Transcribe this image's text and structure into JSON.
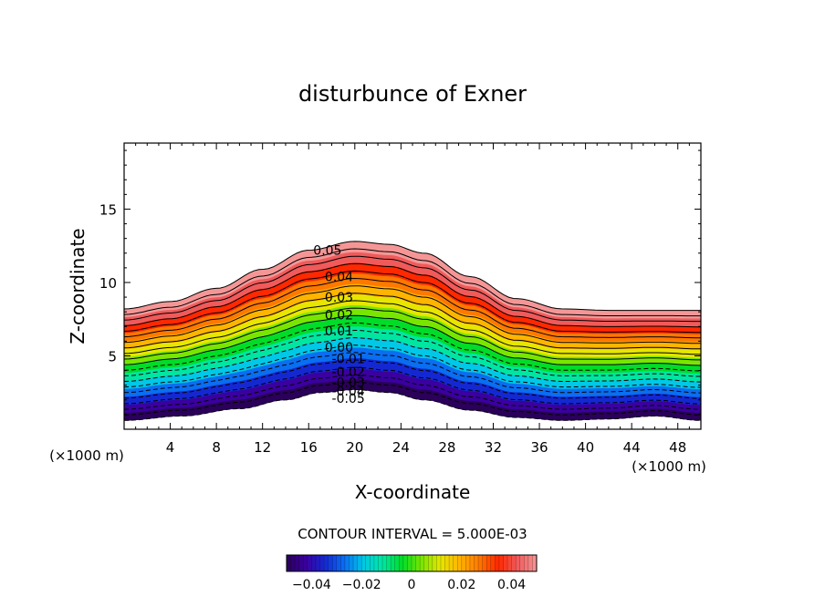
{
  "chart_data": {
    "type": "contour",
    "title": "disturbunce of Exner",
    "xlabel": "X-coordinate",
    "ylabel": "Z-coordinate",
    "x_unit_label": "(×1000 m)",
    "x_unit_label_left": "(×1000 m)",
    "xlim": [
      0,
      50
    ],
    "ylim": [
      0,
      19.5
    ],
    "x_ticks": [
      4,
      8,
      12,
      16,
      20,
      24,
      28,
      32,
      36,
      40,
      44,
      48
    ],
    "x_tick_labels": [
      "4",
      "8",
      "12",
      "16",
      "20",
      "24",
      "28",
      "32",
      "36",
      "40",
      "44",
      "48"
    ],
    "y_ticks": [
      5,
      10,
      15
    ],
    "y_tick_labels": [
      "5",
      "10",
      "15"
    ],
    "contour_interval_text": "CONTOUR INTERVAL = 5.000E-03",
    "contour_interval": 0.005,
    "level_range": [
      -0.05,
      0.05
    ],
    "negative_contours": "dashed",
    "surface_profile": {
      "x": [
        0,
        5,
        10,
        14,
        17,
        20,
        23,
        26,
        30,
        34,
        38,
        42,
        46,
        50
      ],
      "z": [
        0.6,
        0.9,
        1.4,
        2.0,
        2.5,
        2.7,
        2.5,
        2.0,
        1.3,
        0.8,
        0.6,
        0.7,
        0.9,
        0.6
      ]
    },
    "top_boundary": {
      "x": [
        0,
        4,
        8,
        12,
        16,
        20,
        23,
        26,
        30,
        34,
        38,
        42,
        46,
        50
      ],
      "z": [
        8.2,
        8.7,
        9.6,
        10.9,
        12.2,
        12.8,
        12.6,
        12.0,
        10.4,
        8.9,
        8.2,
        8.1,
        8.1,
        8.1
      ]
    },
    "contour_labels": [
      {
        "text": "0.05",
        "x": 16.4,
        "z": 12.2
      },
      {
        "text": "0.04",
        "x": 17.4,
        "z": 10.4
      },
      {
        "text": "0.03",
        "x": 17.4,
        "z": 9.0
      },
      {
        "text": "0.02",
        "x": 17.4,
        "z": 7.8
      },
      {
        "text": "0.01",
        "x": 17.4,
        "z": 6.7
      },
      {
        "text": "0.00",
        "x": 17.4,
        "z": 5.6
      },
      {
        "text": "-0.01",
        "x": 18.0,
        "z": 4.8
      },
      {
        "text": "-0.02",
        "x": 18.0,
        "z": 3.9
      },
      {
        "text": "-0.03",
        "x": 18.0,
        "z": 3.2
      },
      {
        "text": "-0.04",
        "x": 18.0,
        "z": 2.6
      },
      {
        "text": "-0.05",
        "x": 18.0,
        "z": 2.1
      }
    ],
    "colorbar": {
      "ticks": [
        -0.04,
        -0.02,
        0,
        0.02,
        0.04
      ],
      "tick_labels": [
        "−0.04",
        "−0.02",
        "0",
        "0.02",
        "0.04"
      ],
      "colors": [
        "#2a005a",
        "#3a00a0",
        "#1428d2",
        "#0a6ef0",
        "#00c8e6",
        "#00e6a0",
        "#00dc28",
        "#78e600",
        "#e6e600",
        "#ffb400",
        "#ff7800",
        "#ff2800",
        "#f05a5a",
        "#f59696"
      ]
    }
  }
}
